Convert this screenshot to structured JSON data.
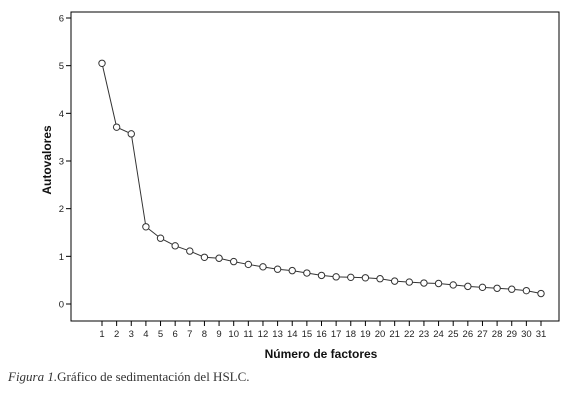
{
  "caption": {
    "figure_label": "Figura 1.",
    "text": "Gráfico de sedimentación del HSLC."
  },
  "colors": {
    "plot_background": "#ffffff",
    "line": "#333333",
    "marker_stroke": "#333333",
    "axis": "#000000"
  },
  "chart_data": {
    "type": "line",
    "title": "",
    "xlabel": "Número de factores",
    "ylabel": "Autovalores",
    "x": [
      1,
      2,
      3,
      4,
      5,
      6,
      7,
      8,
      9,
      10,
      11,
      12,
      13,
      14,
      15,
      16,
      17,
      18,
      19,
      20,
      21,
      22,
      23,
      24,
      25,
      26,
      27,
      28,
      29,
      30,
      31
    ],
    "series": [
      {
        "values": [
          5.05,
          3.71,
          3.57,
          1.62,
          1.38,
          1.22,
          1.11,
          0.98,
          0.96,
          0.89,
          0.83,
          0.78,
          0.73,
          0.7,
          0.65,
          0.6,
          0.57,
          0.56,
          0.55,
          0.53,
          0.48,
          0.46,
          0.44,
          0.43,
          0.4,
          0.37,
          0.35,
          0.33,
          0.31,
          0.28,
          0.22
        ],
        "marker": "open-circle"
      }
    ],
    "ylim": [
      0,
      6
    ],
    "yticks": [
      0,
      1,
      2,
      3,
      4,
      5,
      6
    ],
    "xlim": [
      1,
      31
    ],
    "xticks": [
      1,
      2,
      3,
      4,
      5,
      6,
      7,
      8,
      9,
      10,
      11,
      12,
      13,
      14,
      15,
      16,
      17,
      18,
      19,
      20,
      21,
      22,
      23,
      24,
      25,
      26,
      27,
      28,
      29,
      30,
      31
    ],
    "grid": false,
    "legend": "none"
  }
}
